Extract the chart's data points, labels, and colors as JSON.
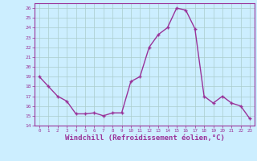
{
  "x": [
    0,
    1,
    2,
    3,
    4,
    5,
    6,
    7,
    8,
    9,
    10,
    11,
    12,
    13,
    14,
    15,
    16,
    17,
    18,
    19,
    20,
    21,
    22,
    23
  ],
  "y": [
    19,
    18,
    17,
    16.5,
    15.2,
    15.2,
    15.3,
    15.0,
    15.3,
    15.3,
    18.5,
    19.0,
    22.0,
    23.3,
    24.0,
    26.0,
    25.8,
    23.9,
    17.0,
    16.3,
    17.0,
    16.3,
    16.0,
    14.7
  ],
  "line_color": "#993399",
  "marker": "s",
  "marker_size": 2.0,
  "line_width": 1.0,
  "xlabel": "Windchill (Refroidissement éolien,°C)",
  "xlabel_fontsize": 6.5,
  "xtick_labels": [
    "0",
    "1",
    "2",
    "3",
    "4",
    "5",
    "6",
    "7",
    "8",
    "9",
    "10",
    "11",
    "12",
    "13",
    "14",
    "15",
    "16",
    "17",
    "18",
    "19",
    "20",
    "21",
    "22",
    "23"
  ],
  "ytick_labels": [
    "14",
    "15",
    "16",
    "17",
    "18",
    "19",
    "20",
    "21",
    "22",
    "23",
    "24",
    "25",
    "26"
  ],
  "ytick_vals": [
    14,
    15,
    16,
    17,
    18,
    19,
    20,
    21,
    22,
    23,
    24,
    25,
    26
  ],
  "ylim": [
    14,
    26.5
  ],
  "xlim": [
    -0.5,
    23.5
  ],
  "bg_color": "#cceeff",
  "grid_color": "#aacccc",
  "tick_color": "#993399",
  "spine_color": "#993399"
}
